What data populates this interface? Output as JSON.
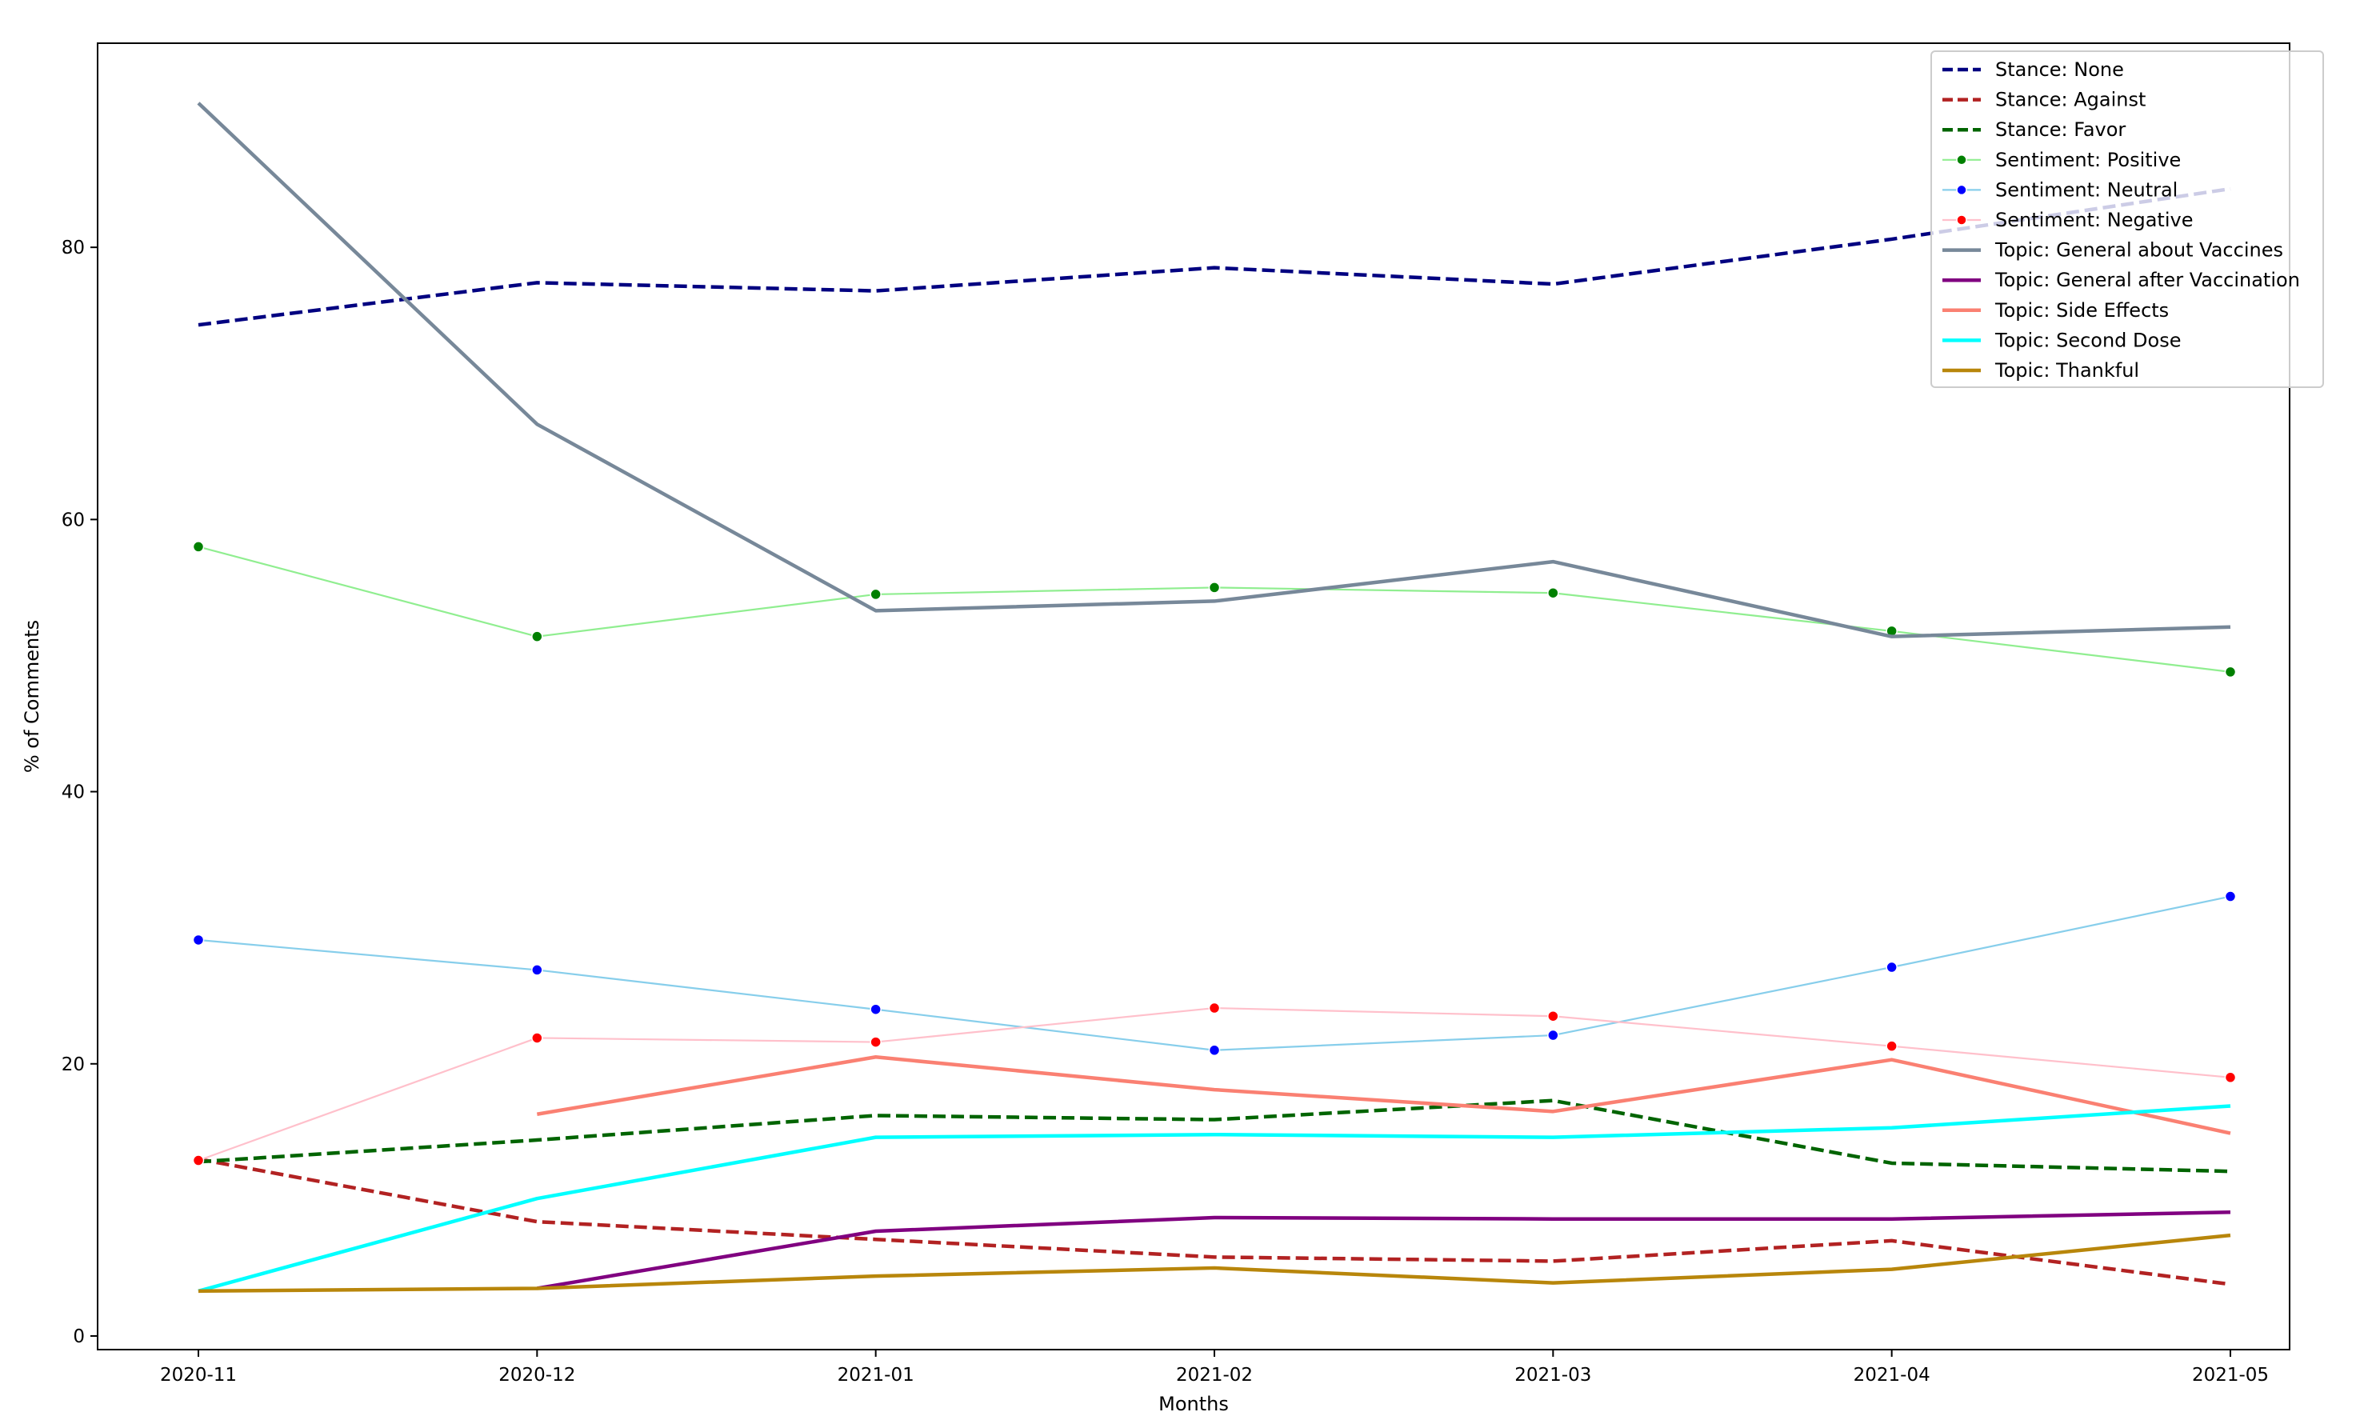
{
  "chart_data": {
    "type": "line",
    "title": "",
    "xlabel": "Months",
    "ylabel": "% of Comments",
    "categories": [
      "2020-11",
      "2020-12",
      "2021-01",
      "2021-02",
      "2021-03",
      "2021-04",
      "2021-05"
    ],
    "ylim": [
      -1,
      95
    ],
    "yticks": [
      0,
      20,
      40,
      60,
      80
    ],
    "grid": false,
    "legend_position": "top-right",
    "series": [
      {
        "name": "Stance: None",
        "color": "#000080",
        "style": "dashed",
        "marker": false,
        "values": [
          74.3,
          77.4,
          76.8,
          78.5,
          77.3,
          80.6,
          84.3
        ]
      },
      {
        "name": "Stance: Against",
        "color": "#b22222",
        "style": "dashed",
        "marker": false,
        "values": [
          13.0,
          8.4,
          7.1,
          5.8,
          5.5,
          7.0,
          3.8
        ]
      },
      {
        "name": "Stance: Favor",
        "color": "#006400",
        "style": "dashed",
        "marker": false,
        "values": [
          12.8,
          14.4,
          16.2,
          15.9,
          17.3,
          12.7,
          12.1
        ]
      },
      {
        "name": "Sentiment: Positive",
        "color": "#90ee90",
        "style": "solid",
        "marker": true,
        "marker_color": "#008000",
        "values": [
          58.0,
          51.4,
          54.5,
          55.0,
          54.6,
          51.8,
          48.8
        ]
      },
      {
        "name": "Sentiment: Neutral",
        "color": "#87ceeb",
        "style": "solid",
        "marker": true,
        "marker_color": "#0000ff",
        "values": [
          29.1,
          26.9,
          24.0,
          21.0,
          22.1,
          27.1,
          32.3
        ]
      },
      {
        "name": "Sentiment: Negative",
        "color": "#ffc0cb",
        "style": "solid",
        "marker": true,
        "marker_color": "#ff0000",
        "values": [
          12.9,
          21.9,
          21.6,
          24.1,
          23.5,
          21.3,
          19.0
        ]
      },
      {
        "name": "Topic: General about Vaccines",
        "color": "#778899",
        "style": "solid",
        "marker": false,
        "values": [
          90.6,
          67.0,
          53.3,
          54.0,
          56.9,
          51.4,
          52.1
        ]
      },
      {
        "name": "Topic: General after Vaccination",
        "color": "#800080",
        "style": "solid",
        "marker": false,
        "values": [
          null,
          3.5,
          7.7,
          8.7,
          8.6,
          8.6,
          9.1
        ]
      },
      {
        "name": "Topic: Side Effects",
        "color": "#fa8072",
        "style": "solid",
        "marker": false,
        "values": [
          null,
          16.3,
          20.5,
          18.1,
          16.5,
          20.3,
          14.9
        ]
      },
      {
        "name": "Topic: Second Dose",
        "color": "#00ffff",
        "style": "solid",
        "marker": false,
        "values": [
          3.3,
          10.1,
          14.6,
          14.8,
          14.6,
          15.3,
          16.9
        ]
      },
      {
        "name": "Topic: Thankful",
        "color": "#b8860b",
        "style": "solid",
        "marker": false,
        "values": [
          3.3,
          3.5,
          4.4,
          5.0,
          3.9,
          4.9,
          7.4
        ]
      }
    ]
  }
}
